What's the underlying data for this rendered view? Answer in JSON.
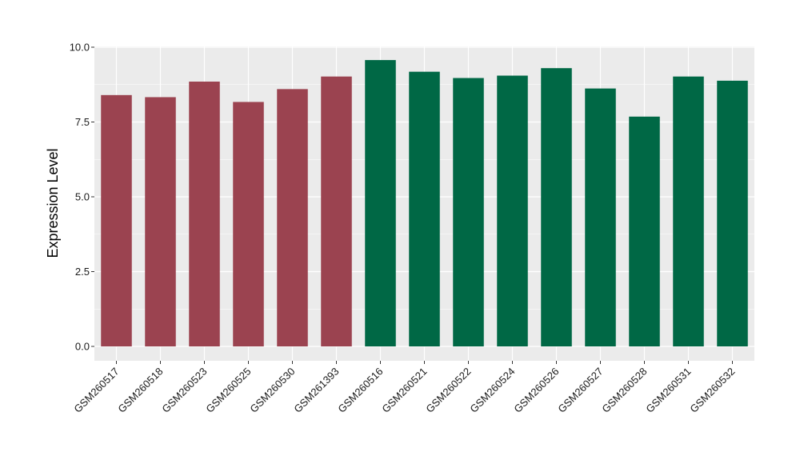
{
  "chart_data": {
    "type": "bar",
    "title": "",
    "xlabel": "",
    "ylabel": "Expression Level",
    "ylim": [
      -0.4,
      10.0
    ],
    "yticks": [
      0.0,
      2.5,
      5.0,
      7.5,
      10.0
    ],
    "ytick_labels": [
      "0.0",
      "2.5",
      "5.0",
      "7.5",
      "10.0"
    ],
    "grid": true,
    "legend": "none",
    "categories": [
      "GSM260517",
      "GSM260518",
      "GSM260523",
      "GSM260525",
      "GSM260530",
      "GSM261393",
      "GSM260516",
      "GSM260521",
      "GSM260522",
      "GSM260524",
      "GSM260526",
      "GSM260527",
      "GSM260528",
      "GSM260531",
      "GSM260532"
    ],
    "values": [
      8.4,
      8.33,
      8.85,
      8.17,
      8.6,
      9.02,
      9.57,
      9.18,
      8.97,
      9.05,
      9.3,
      8.62,
      7.68,
      9.02,
      8.88
    ],
    "group": [
      0,
      0,
      0,
      0,
      0,
      0,
      1,
      1,
      1,
      1,
      1,
      1,
      1,
      1,
      1
    ],
    "colors": [
      "#9b4350",
      "#006845"
    ],
    "panel_color": "#ebebeb",
    "grid_color": "#ffffff"
  }
}
